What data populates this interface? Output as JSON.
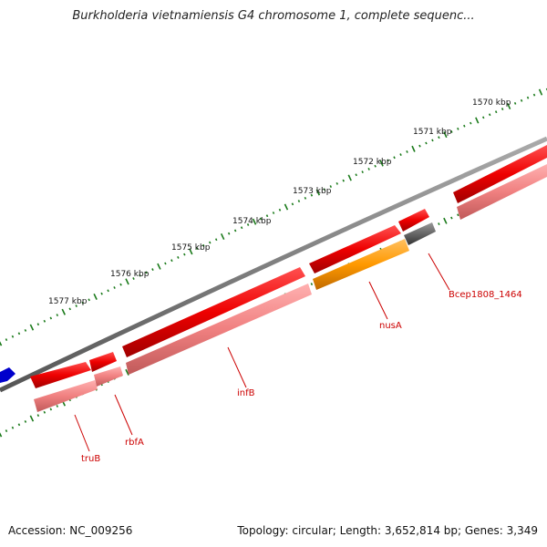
{
  "title": "Burkholderia vietnamiensis G4 chromosome 1, complete sequenc...",
  "accession_text": "Accession: NC_009256",
  "topology_text": "Topology: circular; Length: 3,652,814 bp; Genes: 3,349",
  "ruler": {
    "unit": "kbp",
    "ticks": [
      {
        "pos_kbp": 1570,
        "label": "1570 kbp"
      },
      {
        "pos_kbp": 1571,
        "label": "1571 kbp"
      },
      {
        "pos_kbp": 1572,
        "label": "1572 kbp"
      },
      {
        "pos_kbp": 1573,
        "label": "1573 kbp"
      },
      {
        "pos_kbp": 1574,
        "label": "1574 kbp"
      },
      {
        "pos_kbp": 1575,
        "label": "1575 kbp"
      },
      {
        "pos_kbp": 1576,
        "label": "1576 kbp"
      },
      {
        "pos_kbp": 1577,
        "label": "1577 kbp"
      }
    ]
  },
  "genes": [
    {
      "name": "truB",
      "color": "#f08080"
    },
    {
      "name": "rbfA",
      "color": "#f08080"
    },
    {
      "name": "infB",
      "color": "#f08080"
    },
    {
      "name": "nusA",
      "color": "#ff9900"
    },
    {
      "name": "Bcep1808_1464",
      "color": "#666666"
    }
  ],
  "colors": {
    "cds": "#ee0000",
    "cds_light": "#f08080",
    "backbone": "#888888",
    "tick": "#1a7a1a",
    "label": "#cc0000",
    "other_strand": "#0000cc"
  }
}
